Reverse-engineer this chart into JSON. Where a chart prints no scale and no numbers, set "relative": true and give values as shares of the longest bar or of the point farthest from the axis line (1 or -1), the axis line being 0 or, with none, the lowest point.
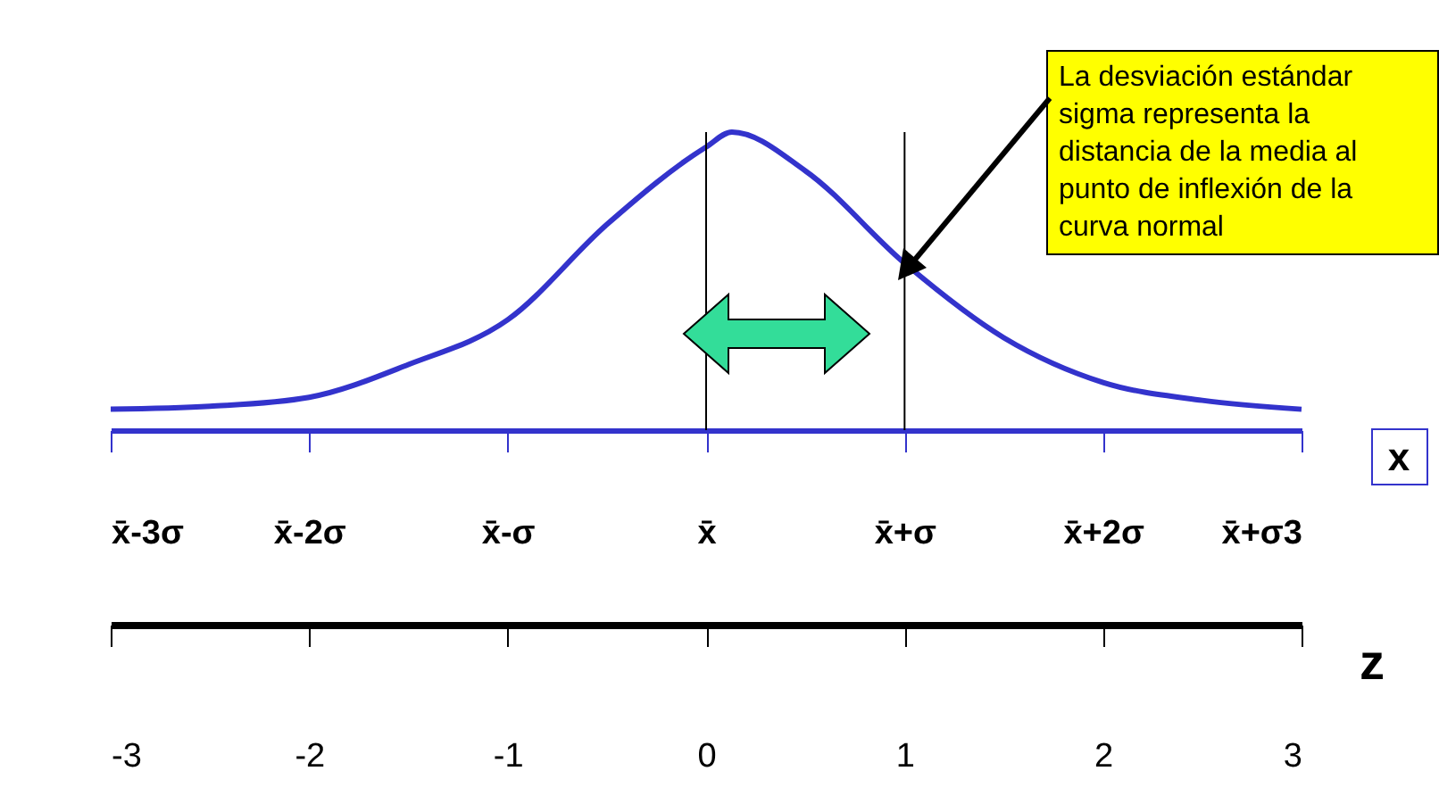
{
  "chart_data": {
    "type": "line",
    "relative": true,
    "xlabel": "z",
    "x2label": "x",
    "x": [
      -3,
      -2.5,
      -2,
      -1.5,
      -1,
      -0.5,
      0,
      0.13,
      0.5,
      1,
      1.5,
      2,
      2.5,
      3
    ],
    "series": [
      {
        "color": "#3333cc",
        "values": [
          0.07,
          0.08,
          0.11,
          0.22,
          0.37,
          0.69,
          0.95,
          1,
          0.87,
          0.56,
          0.31,
          0.16,
          0.1,
          0.07
        ]
      }
    ],
    "xlim": [
      -3,
      3
    ],
    "xticks": [
      -3,
      -2,
      -1,
      0,
      1,
      2,
      3
    ],
    "x2lim": [
      -3,
      3
    ],
    "x2ticks": [
      {
        "value": -3,
        "label": "x̄-3σ"
      },
      {
        "value": -2,
        "label": "x̄-2σ"
      },
      {
        "value": -1,
        "label": "x̄-σ"
      },
      {
        "value": 0,
        "label": "x̄"
      },
      {
        "value": 1,
        "label": "x̄+σ"
      },
      {
        "value": 2,
        "label": "x̄+2σ"
      },
      {
        "value": 3,
        "label": "x̄+σ3"
      }
    ],
    "ref_lines": [
      {
        "axis": "x",
        "value": 0
      },
      {
        "axis": "x",
        "value": 1
      }
    ],
    "annotations": [
      "La desviación estándar sigma representa la distancia de la media al punto de inflexión de la curva normal"
    ]
  }
}
